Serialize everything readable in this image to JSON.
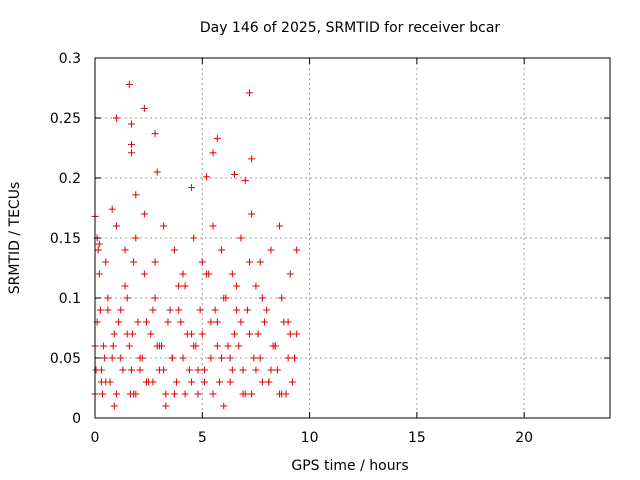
{
  "chart_data": {
    "type": "scatter",
    "title": "Day 146 of 2025, SRMTID for receiver bcar",
    "xlabel": "GPS time / hours",
    "ylabel": "SRMTID / TECUs",
    "xlim": [
      0,
      24
    ],
    "ylim": [
      0,
      0.3
    ],
    "x_ticks": [
      0,
      5,
      10,
      15,
      20
    ],
    "x_tick_labels": [
      "0",
      "5",
      "10",
      "15",
      "20"
    ],
    "y_ticks": [
      0,
      0.05,
      0.1,
      0.15,
      0.2,
      0.25,
      0.3
    ],
    "y_tick_labels": [
      "0",
      "0.05",
      "0.1",
      "0.15",
      "0.2",
      "0.25",
      "0.3"
    ],
    "grid": true,
    "marker": "+",
    "color": "#e00000",
    "series": [
      {
        "name": "SRMTID",
        "x": [
          0.0,
          0.1,
          0.2,
          0.3,
          0.4,
          0.5,
          0.6,
          0.8,
          0.9,
          1.0,
          1.2,
          1.4,
          1.6,
          1.7,
          1.8,
          1.9,
          2.0,
          2.2,
          2.3,
          2.5,
          2.6,
          2.8,
          3.0,
          3.1,
          3.3,
          3.5,
          3.6,
          3.8,
          4.0,
          4.2,
          4.4,
          4.6,
          4.8,
          5.0,
          5.2,
          5.4,
          5.6,
          5.8,
          6.0,
          6.2,
          6.4,
          6.6,
          6.8,
          7.0,
          7.2,
          7.4,
          7.6,
          7.8,
          8.0,
          8.2,
          8.4,
          8.6,
          8.8,
          9.0,
          9.2,
          9.4,
          0.05,
          0.15,
          0.25,
          0.35,
          0.45,
          0.7,
          0.85,
          1.1,
          1.3,
          1.5,
          1.65,
          1.75,
          2.1,
          2.4,
          2.7,
          2.9,
          3.2,
          3.4,
          3.7,
          3.9,
          4.1,
          4.3,
          4.5,
          4.7,
          4.9,
          5.1,
          5.3,
          5.5,
          5.7,
          5.9,
          6.1,
          6.3,
          6.5,
          6.7,
          6.9,
          7.1,
          7.3,
          7.5,
          7.7,
          7.9,
          8.1,
          8.3,
          8.5,
          8.7,
          8.9,
          9.1,
          9.3,
          0.0,
          0.3,
          0.6,
          0.9,
          1.2,
          1.5,
          1.8,
          2.1,
          2.4,
          2.7,
          3.0,
          3.3,
          3.6,
          3.9,
          4.2,
          4.5,
          4.8,
          5.1,
          5.4,
          5.7,
          6.0,
          6.3,
          6.6,
          6.9,
          7.2,
          7.5,
          7.8,
          8.1,
          8.4,
          8.7,
          9.0,
          9.3,
          0.1,
          0.5,
          1.0,
          1.4,
          1.9,
          2.3,
          2.8,
          3.2,
          3.7,
          4.1,
          4.6,
          5.0,
          5.5,
          5.9,
          6.4,
          6.8,
          7.3,
          7.7,
          8.2,
          8.6,
          9.1,
          9.4,
          1.6,
          1.7,
          1.7,
          1.7,
          2.3,
          2.8,
          5.5,
          5.7,
          7.2,
          7.3,
          1.0,
          0.0,
          1.9,
          2.9,
          4.5,
          5.2,
          6.5,
          7.0,
          0.2,
          0.8
        ],
        "y": [
          0.02,
          0.08,
          0.12,
          0.04,
          0.06,
          0.03,
          0.1,
          0.05,
          0.07,
          0.02,
          0.09,
          0.11,
          0.06,
          0.04,
          0.13,
          0.02,
          0.08,
          0.05,
          0.12,
          0.03,
          0.07,
          0.1,
          0.04,
          0.06,
          0.02,
          0.09,
          0.05,
          0.03,
          0.08,
          0.11,
          0.04,
          0.06,
          0.02,
          0.07,
          0.12,
          0.05,
          0.09,
          0.03,
          0.1,
          0.06,
          0.04,
          0.11,
          0.08,
          0.02,
          0.13,
          0.05,
          0.07,
          0.03,
          0.09,
          0.04,
          0.06,
          0.02,
          0.08,
          0.05,
          0.03,
          0.07,
          0.04,
          0.14,
          0.09,
          0.02,
          0.05,
          0.03,
          0.06,
          0.08,
          0.04,
          0.1,
          0.02,
          0.07,
          0.05,
          0.03,
          0.09,
          0.06,
          0.04,
          0.08,
          0.02,
          0.11,
          0.05,
          0.07,
          0.03,
          0.06,
          0.09,
          0.04,
          0.12,
          0.02,
          0.08,
          0.05,
          0.1,
          0.03,
          0.07,
          0.06,
          0.04,
          0.09,
          0.02,
          0.11,
          0.05,
          0.08,
          0.03,
          0.06,
          0.04,
          0.1,
          0.02,
          0.07,
          0.05,
          0.06,
          0.03,
          0.09,
          0.01,
          0.05,
          0.07,
          0.02,
          0.04,
          0.08,
          0.03,
          0.06,
          0.01,
          0.05,
          0.09,
          0.02,
          0.07,
          0.04,
          0.03,
          0.08,
          0.06,
          0.01,
          0.05,
          0.09,
          0.02,
          0.07,
          0.04,
          0.1,
          0.03,
          0.06,
          0.02,
          0.08,
          0.05,
          0.15,
          0.13,
          0.16,
          0.14,
          0.15,
          0.17,
          0.13,
          0.16,
          0.14,
          0.12,
          0.15,
          0.13,
          0.16,
          0.14,
          0.12,
          0.15,
          0.17,
          0.13,
          0.14,
          0.16,
          0.12,
          0.14,
          0.278,
          0.245,
          0.228,
          0.221,
          0.258,
          0.237,
          0.221,
          0.233,
          0.271,
          0.216,
          0.25,
          0.168,
          0.186,
          0.205,
          0.192,
          0.201,
          0.203,
          0.198,
          0.145,
          0.174
        ]
      }
    ]
  }
}
